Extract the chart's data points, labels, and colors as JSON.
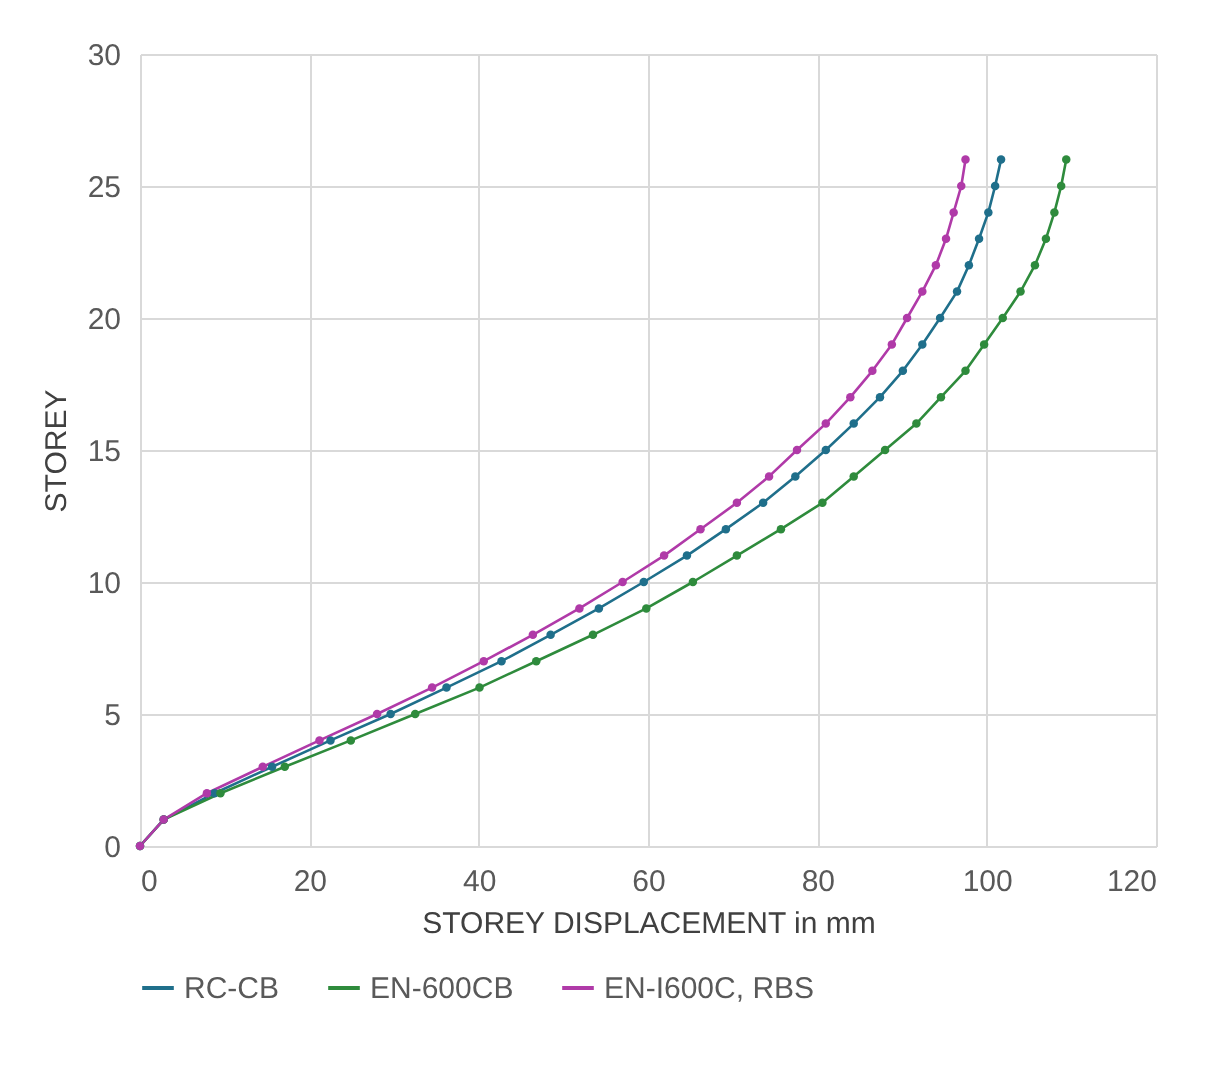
{
  "chart_data": {
    "type": "line",
    "xlabel": "STOREY DISPLACEMENT in mm",
    "ylabel": "STOREY",
    "xlim": [
      0,
      120
    ],
    "xticks": [
      0,
      20,
      40,
      60,
      80,
      100,
      120
    ],
    "ylim": [
      0,
      30
    ],
    "yticks": [
      0,
      5,
      10,
      15,
      20,
      25,
      30
    ],
    "grid": true,
    "legend": "bottom",
    "marker": "circle",
    "line_style": "solid",
    "series": [
      {
        "name": "RC-CB",
        "color": "#1f6f8b",
        "x": [
          0,
          2.8,
          8.8,
          15.6,
          22.5,
          29.6,
          36.2,
          42.7,
          48.5,
          54.2,
          59.5,
          64.6,
          69.2,
          73.6,
          77.4,
          81.0,
          84.3,
          87.4,
          90.1,
          92.4,
          94.5,
          96.5,
          97.9,
          99.1,
          100.2,
          101.0,
          101.7
        ],
        "values": [
          0,
          1,
          2,
          3,
          4,
          5,
          6,
          7,
          8,
          9,
          10,
          11,
          12,
          13,
          14,
          15,
          16,
          17,
          18,
          19,
          20,
          21,
          22,
          23,
          24,
          25,
          26
        ]
      },
      {
        "name": "EN-600CB",
        "color": "#2e8b3c",
        "x": [
          0,
          2.8,
          9.5,
          17.1,
          24.9,
          32.5,
          40.1,
          46.8,
          53.5,
          59.8,
          65.3,
          70.5,
          75.7,
          80.6,
          84.3,
          88.0,
          91.7,
          94.6,
          97.5,
          99.7,
          101.9,
          104.0,
          105.7,
          107.0,
          108.0,
          108.8,
          109.4
        ],
        "values": [
          0,
          1,
          2,
          3,
          4,
          5,
          6,
          7,
          8,
          9,
          10,
          11,
          12,
          13,
          14,
          15,
          16,
          17,
          18,
          19,
          20,
          21,
          22,
          23,
          24,
          25,
          26
        ]
      },
      {
        "name": "EN-I600C, RBS",
        "color": "#b03aa8",
        "x": [
          0,
          2.8,
          7.9,
          14.5,
          21.2,
          28.0,
          34.5,
          40.6,
          46.4,
          51.9,
          57.0,
          61.9,
          66.2,
          70.5,
          74.3,
          77.6,
          81.0,
          83.9,
          86.5,
          88.8,
          90.6,
          92.4,
          94.0,
          95.2,
          96.1,
          97.0,
          97.5
        ],
        "values": [
          0,
          1,
          2,
          3,
          4,
          5,
          6,
          7,
          8,
          9,
          10,
          11,
          12,
          13,
          14,
          15,
          16,
          17,
          18,
          19,
          20,
          21,
          22,
          23,
          24,
          25,
          26
        ]
      }
    ]
  }
}
